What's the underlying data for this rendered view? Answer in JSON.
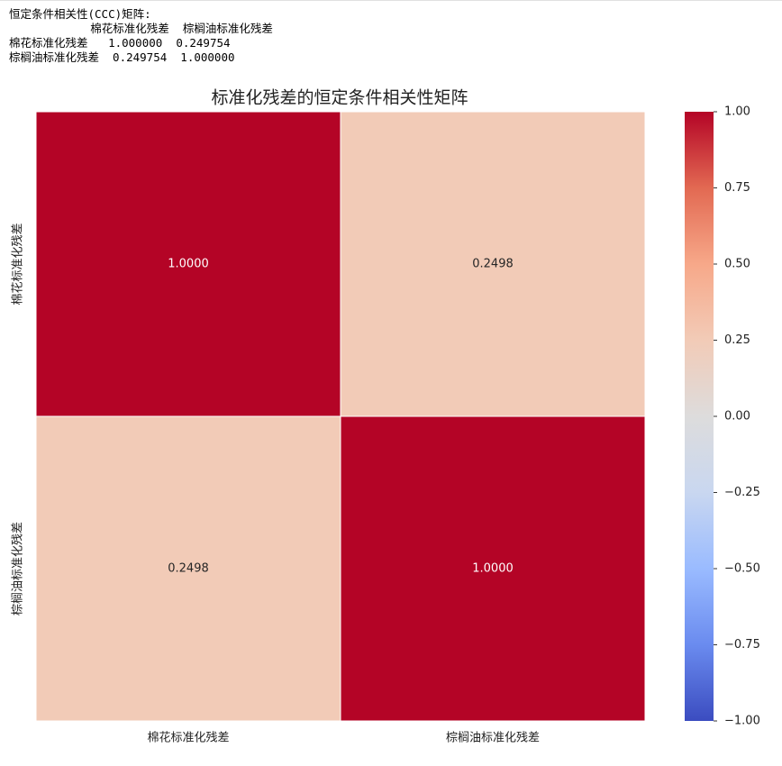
{
  "console_output": [
    "恒定条件相关性(CCC)矩阵:",
    "            棉花标准化残差  棕榈油标准化残差",
    "棉花标准化残差   1.000000  0.249754",
    "棕榈油标准化残差  0.249754  1.000000"
  ],
  "chart_data": {
    "type": "heatmap",
    "title": "标准化残差的恒定条件相关性矩阵",
    "x_categories": [
      "棉花标准化残差",
      "棕榈油标准化残差"
    ],
    "y_categories": [
      "棉花标准化残差",
      "棕榈油标准化残差"
    ],
    "values": [
      [
        1.0,
        0.249754
      ],
      [
        0.249754,
        1.0
      ]
    ],
    "value_labels": [
      [
        "1.0000",
        "0.2498"
      ],
      [
        "0.2498",
        "1.0000"
      ]
    ],
    "zlim": [
      -1,
      1
    ],
    "cticks": [
      {
        "value": -1,
        "label": "−1.00"
      },
      {
        "value": -0.75,
        "label": "−0.75"
      },
      {
        "value": -0.5,
        "label": "−0.50"
      },
      {
        "value": -0.25,
        "label": "−0.25"
      },
      {
        "value": 0,
        "label": "0.00"
      },
      {
        "value": 0.25,
        "label": "0.25"
      },
      {
        "value": 0.5,
        "label": "0.50"
      },
      {
        "value": 0.75,
        "label": "0.75"
      },
      {
        "value": 1,
        "label": "1.00"
      }
    ],
    "colormap": [
      "#3b4cc0",
      "#6a8bef",
      "#9abbff",
      "#c9d7f0",
      "#dddcdc",
      "#f2cbb7",
      "#f7a889",
      "#e26952",
      "#b40426"
    ]
  }
}
